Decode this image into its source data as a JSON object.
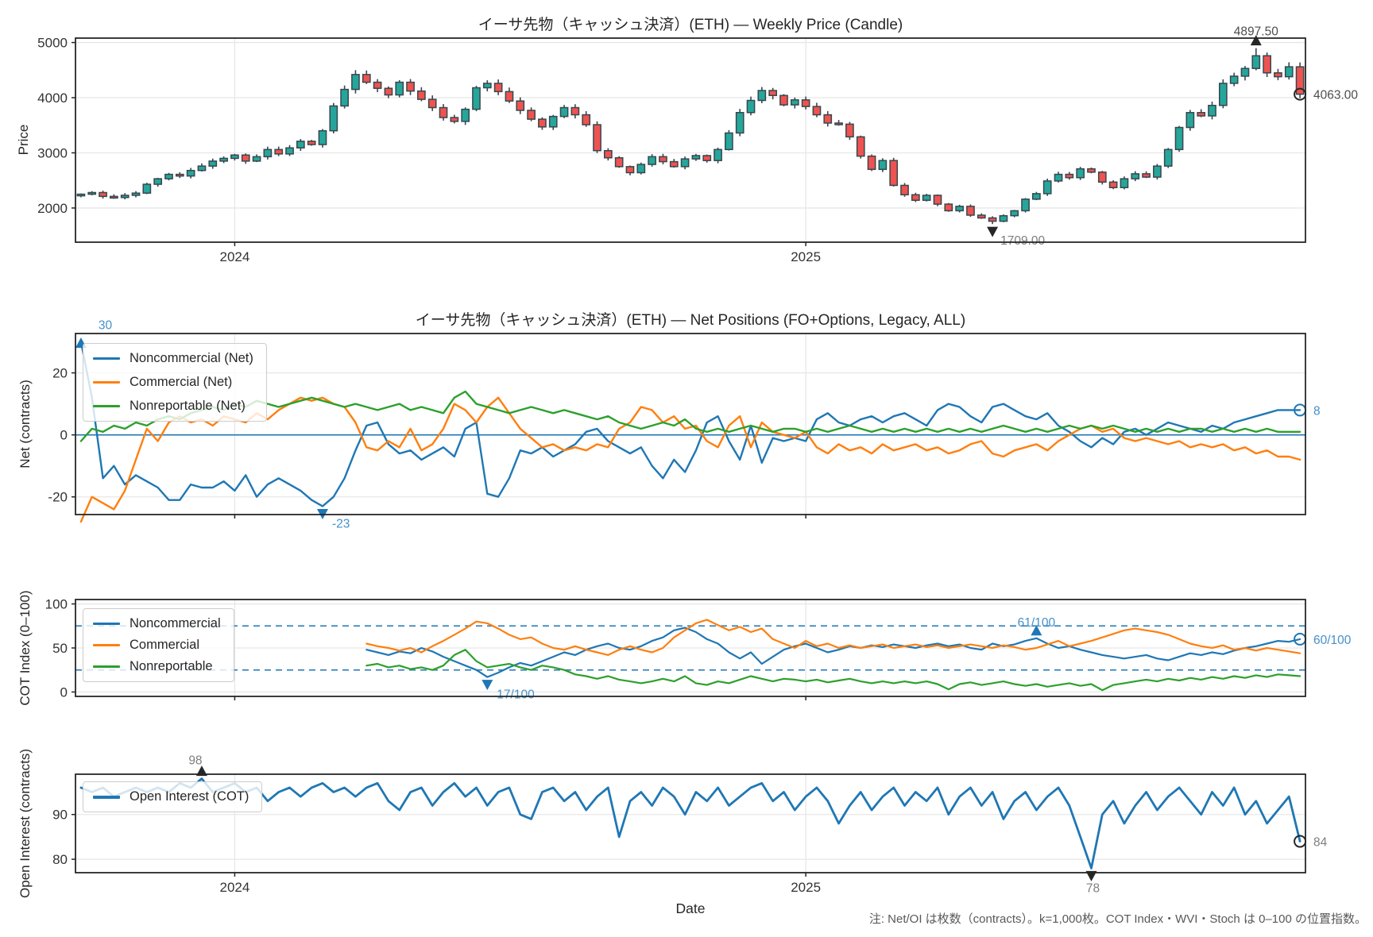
{
  "figure": {
    "note": "注: Net/OI は枚数（contracts）。k=1,000枚。COT Index・WVI・Stoch は 0–100 の位置指数。",
    "xlabel": "Date",
    "x_year_ticks": [
      {
        "label": "2024",
        "index": 14
      },
      {
        "label": "2025",
        "index": 66
      }
    ]
  },
  "colors": {
    "noncommercial": "#1f77b4",
    "commercial": "#ff7f0e",
    "nonreportable": "#2ca02c",
    "candle_up": "#26a69a",
    "candle_down": "#ef5350",
    "candle_edge": "#37474f",
    "grid": "#e7e7e7",
    "spine": "#262626",
    "zero_line": "#1f77b4",
    "dashed_line": "#2277b4",
    "annotation_blue": "#4690c8",
    "annotation_gray": "#7f7f7f",
    "annotation_dark": "#4d4d4d",
    "last_marker": "#262626"
  },
  "chart_data": [
    {
      "type": "candlestick",
      "title": "イーサ先物（キャッシュ決済）(ETH) — Weekly Price (Candle)",
      "ylabel": "Price",
      "ylim": [
        1380,
        5080
      ],
      "yticks": [
        2000,
        3000,
        4000,
        5000
      ],
      "show_xticklabels": true,
      "first_open": 2230,
      "closes": [
        2250,
        2280,
        2210,
        2190,
        2230,
        2270,
        2430,
        2530,
        2610,
        2580,
        2680,
        2760,
        2850,
        2900,
        2960,
        2850,
        2930,
        3060,
        2980,
        3090,
        3210,
        3150,
        3400,
        3850,
        4150,
        4420,
        4280,
        4170,
        4050,
        4280,
        4120,
        3970,
        3820,
        3640,
        3570,
        3790,
        4180,
        4260,
        4110,
        3940,
        3770,
        3610,
        3470,
        3660,
        3820,
        3690,
        3510,
        3040,
        2910,
        2750,
        2640,
        2790,
        2930,
        2840,
        2750,
        2890,
        2950,
        2860,
        3060,
        3360,
        3730,
        3950,
        4130,
        4040,
        3870,
        3960,
        3840,
        3690,
        3540,
        3520,
        3290,
        2940,
        2700,
        2860,
        2410,
        2240,
        2140,
        2230,
        2070,
        1950,
        2030,
        1870,
        1820,
        1760,
        1860,
        1950,
        2160,
        2260,
        2490,
        2610,
        2550,
        2710,
        2650,
        2470,
        2370,
        2530,
        2620,
        2560,
        2760,
        3060,
        3460,
        3730,
        3670,
        3860,
        4260,
        4390,
        4530,
        4760,
        4450,
        4380,
        4560,
        4063
      ],
      "annotations": {
        "max": {
          "text": "4897.50",
          "index": 107,
          "value": 4897.5
        },
        "min": {
          "text": "1709.00",
          "index": 83,
          "value": 1709.0
        },
        "last": {
          "text": "4063.00",
          "value": 4063.0
        }
      }
    },
    {
      "type": "line",
      "title": "イーサ先物（キャッシュ決済）(ETH) — Net Positions (FO+Options, Legacy, ALL)",
      "ylabel": "Net (contracts)",
      "ylim": [
        -25.7,
        32.7
      ],
      "yticks": [
        -20,
        0,
        20
      ],
      "zero_line": true,
      "line_width": 2.4,
      "legend": [
        "Noncommercial (Net)",
        "Commercial (Net)",
        "Nonreportable (Net)"
      ],
      "series": [
        {
          "name": "Noncommercial (Net)",
          "color_key": "noncommercial",
          "values": [
            30,
            12,
            -14,
            -10,
            -16,
            -13,
            -15,
            -17,
            -21,
            -21,
            -16,
            -17,
            -17,
            -15,
            -18,
            -13,
            -20,
            -16,
            -14,
            -16,
            -18,
            -21,
            -23,
            -20,
            -14,
            -5,
            3,
            4,
            -3,
            -6,
            -5,
            -8,
            -6,
            -4,
            -7,
            2,
            4,
            -19,
            -20,
            -14,
            -5,
            -6,
            -4,
            -7,
            -5,
            -3,
            1,
            2,
            -2,
            -4,
            -6,
            -4,
            -10,
            -14,
            -8,
            -12,
            -5,
            4,
            6,
            -2,
            -8,
            3,
            -9,
            -1,
            -2,
            -1,
            -2,
            5,
            7,
            4,
            3,
            5,
            6,
            4,
            6,
            7,
            5,
            3,
            8,
            10,
            9,
            6,
            4,
            9,
            10,
            8,
            6,
            5,
            7,
            3,
            1,
            -2,
            -4,
            -1,
            -3,
            1,
            2,
            0,
            2,
            4,
            3,
            2,
            1,
            3,
            2,
            4,
            5,
            6,
            7,
            8,
            8,
            8
          ]
        },
        {
          "name": "Commercial (Net)",
          "color_key": "commercial",
          "values": [
            -28,
            -20,
            -22,
            -24,
            -18,
            -8,
            2,
            -2,
            4,
            6,
            4,
            5,
            3,
            6,
            5,
            4,
            7,
            5,
            8,
            10,
            12,
            11,
            12,
            10,
            9,
            4,
            -4,
            -5,
            -2,
            -4,
            2,
            -5,
            -3,
            2,
            10,
            8,
            4,
            9,
            12,
            7,
            2,
            -1,
            -4,
            -3,
            -5,
            -4,
            -5,
            -3,
            -4,
            2,
            4,
            9,
            8,
            4,
            6,
            2,
            3,
            -2,
            -4,
            3,
            6,
            -4,
            4,
            1,
            0,
            -1,
            1,
            -4,
            -6,
            -3,
            -5,
            -4,
            -6,
            -3,
            -5,
            -4,
            -3,
            -5,
            -4,
            -6,
            -5,
            -3,
            -2,
            -6,
            -7,
            -5,
            -4,
            -3,
            -5,
            -2,
            0,
            2,
            3,
            1,
            2,
            -1,
            -2,
            -1,
            -2,
            -3,
            -2,
            -4,
            -3,
            -4,
            -3,
            -5,
            -4,
            -6,
            -5,
            -7,
            -7,
            -8
          ]
        },
        {
          "name": "Nonreportable (Net)",
          "color_key": "nonreportable",
          "values": [
            -2,
            2,
            1,
            3,
            2,
            4,
            3,
            5,
            6,
            5,
            7,
            8,
            9,
            8,
            10,
            9,
            11,
            10,
            9,
            10,
            11,
            12,
            11,
            10,
            9,
            10,
            9,
            8,
            9,
            10,
            8,
            9,
            8,
            7,
            12,
            14,
            10,
            9,
            8,
            7,
            8,
            9,
            8,
            7,
            8,
            7,
            6,
            5,
            6,
            4,
            3,
            2,
            3,
            4,
            3,
            5,
            2,
            1,
            2,
            1,
            2,
            3,
            2,
            1,
            2,
            2,
            1,
            2,
            1,
            2,
            3,
            2,
            1,
            2,
            1,
            2,
            1,
            2,
            1,
            2,
            1,
            2,
            1,
            2,
            3,
            2,
            1,
            2,
            1,
            2,
            3,
            2,
            3,
            2,
            3,
            2,
            1,
            2,
            1,
            2,
            1,
            2,
            2,
            1,
            2,
            1,
            2,
            1,
            2,
            1,
            1,
            1
          ]
        }
      ],
      "annotations": {
        "first": {
          "text": "30",
          "index": 0,
          "value": 30
        },
        "min": {
          "text": "-23",
          "index": 22,
          "value": -23
        },
        "last": {
          "text": "8",
          "value": 8
        }
      }
    },
    {
      "type": "line",
      "title": "",
      "ylabel": "COT Index (0–100)",
      "ylim": [
        -5,
        105
      ],
      "yticks": [
        0,
        50,
        100
      ],
      "dashed_lines": [
        25,
        75
      ],
      "line_width": 2.2,
      "legend": [
        "Noncommercial",
        "Commercial",
        "Nonreportable"
      ],
      "series": [
        {
          "name": "Noncommercial",
          "color_key": "noncommercial",
          "values": [
            null,
            null,
            null,
            null,
            null,
            null,
            null,
            null,
            null,
            null,
            null,
            null,
            null,
            null,
            null,
            null,
            null,
            null,
            null,
            null,
            null,
            null,
            null,
            null,
            null,
            null,
            48,
            45,
            42,
            46,
            44,
            50,
            46,
            40,
            35,
            30,
            25,
            17,
            22,
            28,
            33,
            30,
            35,
            40,
            45,
            42,
            48,
            52,
            55,
            50,
            48,
            52,
            58,
            62,
            70,
            73,
            68,
            60,
            55,
            45,
            38,
            45,
            32,
            40,
            48,
            52,
            55,
            50,
            45,
            48,
            52,
            50,
            53,
            51,
            54,
            52,
            50,
            53,
            55,
            52,
            54,
            50,
            48,
            55,
            52,
            54,
            58,
            61,
            55,
            50,
            52,
            48,
            45,
            42,
            40,
            38,
            40,
            42,
            38,
            36,
            40,
            44,
            42,
            45,
            43,
            47,
            50,
            52,
            55,
            58,
            57,
            60
          ]
        },
        {
          "name": "Commercial",
          "color_key": "commercial",
          "values": [
            null,
            null,
            null,
            null,
            null,
            null,
            null,
            null,
            null,
            null,
            null,
            null,
            null,
            null,
            null,
            null,
            null,
            null,
            null,
            null,
            null,
            null,
            null,
            null,
            null,
            null,
            55,
            52,
            50,
            47,
            50,
            45,
            52,
            58,
            65,
            72,
            80,
            78,
            72,
            65,
            60,
            62,
            55,
            50,
            48,
            52,
            48,
            45,
            42,
            48,
            52,
            48,
            45,
            50,
            62,
            70,
            78,
            82,
            76,
            70,
            74,
            68,
            72,
            60,
            55,
            50,
            58,
            52,
            55,
            50,
            53,
            50,
            52,
            54,
            50,
            52,
            54,
            51,
            53,
            50,
            52,
            54,
            52,
            50,
            53,
            51,
            48,
            50,
            54,
            58,
            52,
            55,
            58,
            62,
            66,
            70,
            72,
            70,
            68,
            65,
            60,
            55,
            52,
            50,
            53,
            48,
            50,
            47,
            50,
            48,
            46,
            44
          ]
        },
        {
          "name": "Nonreportable",
          "color_key": "nonreportable",
          "values": [
            null,
            null,
            null,
            null,
            null,
            null,
            null,
            null,
            null,
            null,
            null,
            null,
            null,
            null,
            null,
            null,
            null,
            null,
            null,
            null,
            null,
            null,
            null,
            null,
            null,
            null,
            30,
            32,
            28,
            30,
            26,
            28,
            25,
            30,
            42,
            48,
            35,
            28,
            30,
            32,
            28,
            25,
            30,
            28,
            25,
            20,
            18,
            15,
            18,
            14,
            12,
            10,
            12,
            15,
            12,
            18,
            10,
            8,
            12,
            10,
            14,
            18,
            15,
            12,
            15,
            14,
            12,
            14,
            11,
            13,
            15,
            12,
            10,
            12,
            10,
            12,
            10,
            12,
            9,
            3,
            9,
            11,
            8,
            10,
            12,
            9,
            7,
            9,
            6,
            8,
            10,
            7,
            9,
            2,
            8,
            10,
            12,
            14,
            12,
            15,
            13,
            16,
            14,
            17,
            15,
            18,
            16,
            19,
            17,
            20,
            19,
            18
          ]
        }
      ],
      "annotations": {
        "min": {
          "text": "17/100",
          "index": 37,
          "value": 17
        },
        "mark": {
          "text": "61/100",
          "index": 87,
          "value": 61
        },
        "last": {
          "text": "60/100",
          "value": 60
        }
      }
    },
    {
      "type": "line",
      "title": "",
      "ylabel": "Open Interest (contracts)",
      "ylim": [
        77,
        99
      ],
      "yticks": [
        80,
        90
      ],
      "show_xticklabels": true,
      "line_width": 2.8,
      "legend": [
        "Open Interest (COT)"
      ],
      "series": [
        {
          "name": "Open Interest (COT)",
          "color_key": "noncommercial",
          "values": [
            96,
            95,
            96,
            94,
            95,
            96,
            95,
            96,
            95,
            97,
            96,
            98,
            95,
            96,
            97,
            95,
            96,
            93,
            95,
            96,
            94,
            96,
            97,
            95,
            96,
            94,
            96,
            97,
            93,
            91,
            95,
            96,
            92,
            95,
            97,
            94,
            96,
            92,
            95,
            96,
            90,
            89,
            95,
            96,
            93,
            95,
            91,
            94,
            96,
            85,
            93,
            95,
            92,
            96,
            94,
            90,
            95,
            93,
            96,
            92,
            94,
            96,
            97,
            93,
            95,
            91,
            94,
            96,
            93,
            88,
            92,
            95,
            91,
            94,
            96,
            92,
            95,
            93,
            96,
            90,
            94,
            96,
            92,
            95,
            89,
            93,
            95,
            91,
            94,
            96,
            92,
            85,
            78,
            90,
            93,
            88,
            92,
            95,
            91,
            94,
            96,
            93,
            90,
            95,
            92,
            96,
            90,
            93,
            88,
            91,
            94,
            84
          ]
        }
      ],
      "annotations": {
        "max": {
          "text": "98",
          "index": 11,
          "value": 98
        },
        "min": {
          "text": "78",
          "index": 92,
          "value": 78
        },
        "last": {
          "text": "84",
          "value": 84
        }
      }
    }
  ]
}
